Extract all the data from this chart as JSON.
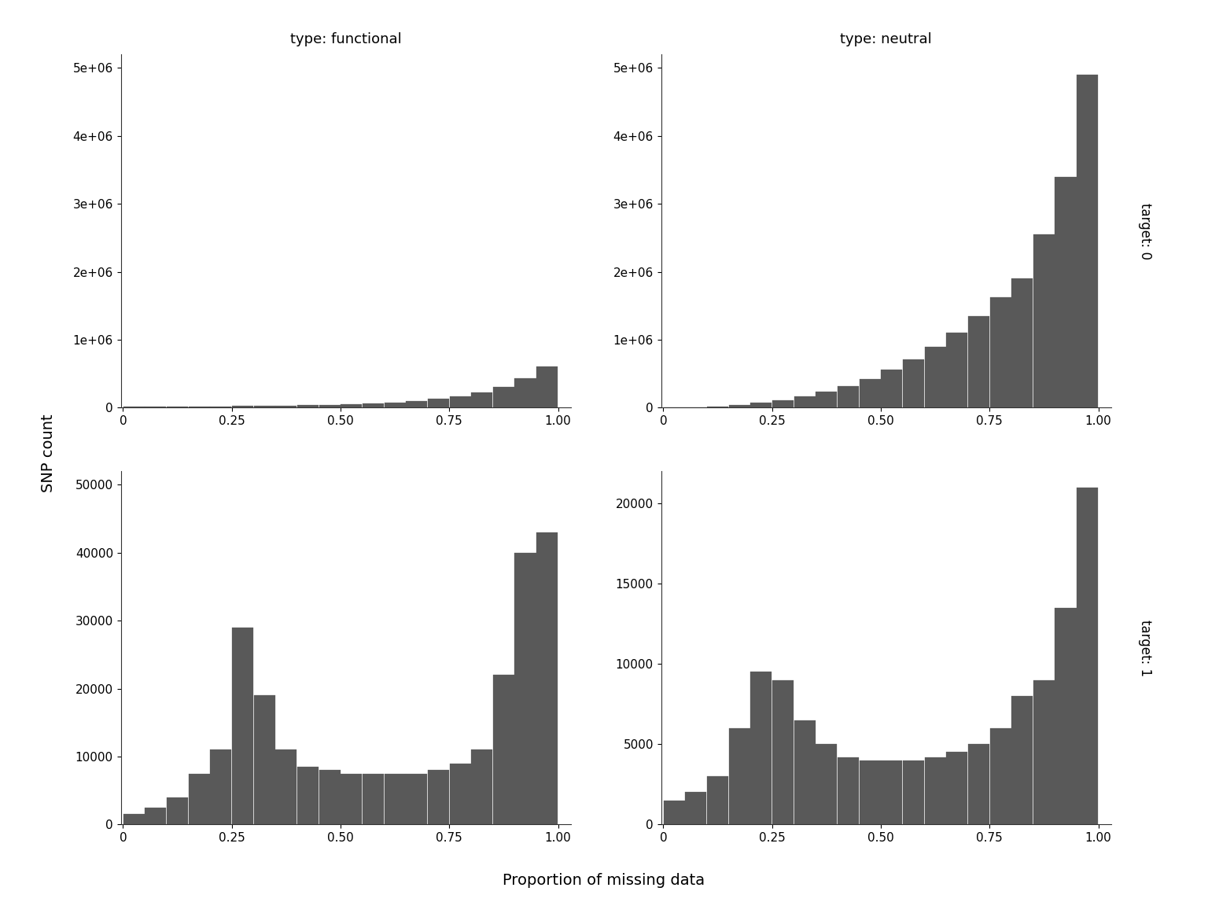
{
  "col_labels": [
    "type: functional",
    "type: neutral"
  ],
  "row_labels": [
    "target: 0",
    "target: 1"
  ],
  "bar_color": "#595959",
  "xlabel": "Proportion of missing data",
  "ylabel": "SNP count",
  "n_bins": 20,
  "background_color": "#ffffff",
  "title_fontsize": 13,
  "axis_label_fontsize": 14,
  "tick_fontsize": 11,
  "row_label_fontsize": 12,
  "functional_target0": [
    10000,
    12000,
    14000,
    16000,
    18500,
    21000,
    24000,
    28000,
    33000,
    39000,
    48000,
    60000,
    75000,
    95000,
    125000,
    165000,
    220000,
    310000,
    430000,
    600000
  ],
  "neutral_target0": [
    3000,
    8000,
    20000,
    40000,
    70000,
    110000,
    165000,
    235000,
    320000,
    425000,
    555000,
    710000,
    890000,
    1100000,
    1350000,
    1620000,
    1900000,
    2550000,
    3400000,
    4900000
  ],
  "functional_target1": [
    1500,
    2500,
    4000,
    7500,
    11000,
    29000,
    19000,
    11000,
    8500,
    8000,
    7500,
    7500,
    7500,
    7500,
    8000,
    9000,
    11000,
    22000,
    40000,
    43000
  ],
  "neutral_target1": [
    1500,
    2000,
    3000,
    6000,
    9500,
    9000,
    6500,
    5000,
    4200,
    4000,
    4000,
    4000,
    4200,
    4500,
    5000,
    6000,
    8000,
    9000,
    13500,
    21000
  ]
}
